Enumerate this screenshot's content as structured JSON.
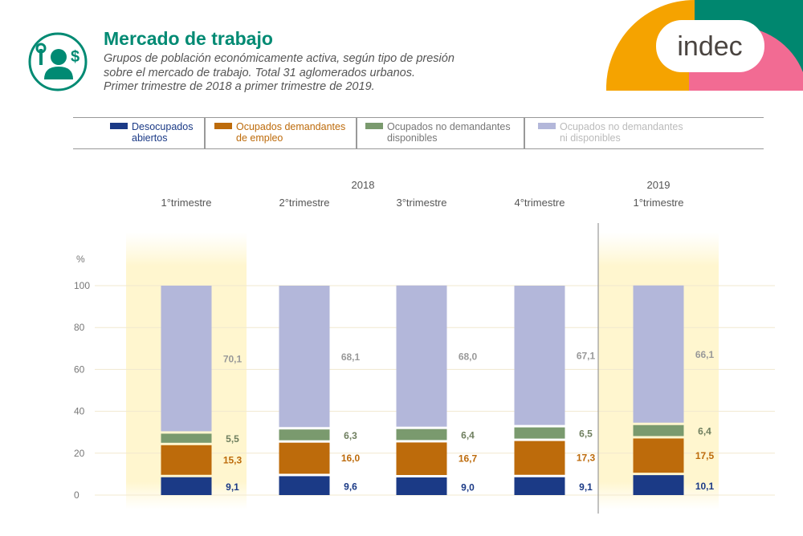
{
  "header": {
    "title": "Mercado de trabajo",
    "subtitle_lines": [
      "Grupos de población económicamente activa, según tipo de presión",
      "sobre el mercado de trabajo. Total 31 aglomerados urbanos.",
      "Primer trimestre de 2018 a primer trimestre de 2019."
    ],
    "logo_text": "indec"
  },
  "colors": {
    "accent": "#008a73",
    "desocupados": "#1b3a86",
    "demandantes": "#bd6b0b",
    "no_dem_disp": "#7a9a6e",
    "no_dem_no_disp": "#b3b7da"
  },
  "chart_data": {
    "type": "bar",
    "stacked": true,
    "title": "Mercado de trabajo",
    "ylabel": "%",
    "ylim": [
      0,
      100
    ],
    "yticks": [
      0,
      20,
      40,
      60,
      80,
      100
    ],
    "grid": true,
    "legend_placement": "top",
    "years": [
      {
        "label": "2018",
        "span": [
          0,
          3
        ]
      },
      {
        "label": "2019",
        "span": [
          4,
          4
        ]
      }
    ],
    "categories": [
      "1°trimestre",
      "2°trimestre",
      "3°trimestre",
      "4°trimestre",
      "1°trimestre"
    ],
    "highlighted": [
      0,
      4
    ],
    "series": [
      {
        "name": "Desocupados abiertos",
        "legend": [
          "Desocupados",
          "abiertos"
        ],
        "color": "#1b3a86",
        "label_color": "#1b3a86",
        "values": [
          9.1,
          9.6,
          9.0,
          9.1,
          10.1
        ],
        "labels": [
          "9,1",
          "9,6",
          "9,0",
          "9,1",
          "10,1"
        ]
      },
      {
        "name": "Ocupados demandantes de empleo",
        "legend": [
          "Ocupados demandantes",
          "de empleo"
        ],
        "color": "#bd6b0b",
        "label_color": "#bd6b0b",
        "values": [
          15.3,
          16.0,
          16.7,
          17.3,
          17.5
        ],
        "labels": [
          "15,3",
          "16,0",
          "16,7",
          "17,3",
          "17,5"
        ]
      },
      {
        "name": "Ocupados no demandantes disponibles",
        "legend": [
          "Ocupados no demandantes",
          "disponibles"
        ],
        "color": "#7a9a6e",
        "label_color": "#6f7f5f",
        "values": [
          5.5,
          6.3,
          6.4,
          6.5,
          6.4
        ],
        "labels": [
          "5,5",
          "6,3",
          "6,4",
          "6,5",
          "6,4"
        ]
      },
      {
        "name": "Ocupados no demandantes ni disponibles",
        "legend": [
          "Ocupados no demandantes",
          "ni disponibles"
        ],
        "color": "#b3b7da",
        "label_color": "#999999",
        "values": [
          70.1,
          68.1,
          68.0,
          67.1,
          66.1
        ],
        "labels": [
          "70,1",
          "68,1",
          "68,0",
          "67,1",
          "66,1"
        ]
      }
    ]
  }
}
